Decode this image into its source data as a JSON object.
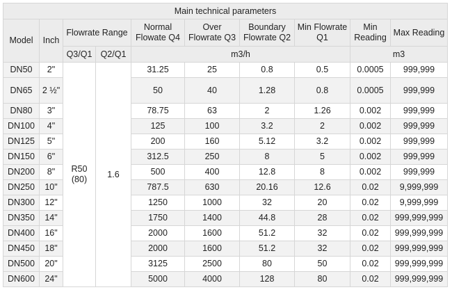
{
  "title": "Main technical parameters",
  "headers": {
    "model": "Model",
    "inch": "Inch",
    "flowrate_range": "Flowrate Range",
    "q4": "Normal Flowate Q4",
    "q3": "Over Flowrate Q3",
    "q2": "Boundary Flowrate Q2",
    "q1": "Min Flowrate Q1",
    "min_reading": "Min Reading",
    "max_reading": "Max Reading",
    "q3q1": "Q3/Q1",
    "q2q1": "Q2/Q1",
    "unit_flow": "m3/h",
    "unit_volume": "m3"
  },
  "q3q1_value": "R50 (80)",
  "q2q1_value": "1.6",
  "rows": [
    {
      "model": "DN50",
      "inch": "2\"",
      "q4": "31.25",
      "q3": "25",
      "q2": "0.8",
      "q1": "0.5",
      "min": "0.0005",
      "max": "999,999"
    },
    {
      "model": "DN65",
      "inch": "2 ½\"",
      "q4": "50",
      "q3": "40",
      "q2": "1.28",
      "q1": "0.8",
      "min": "0.0005",
      "max": "999,999"
    },
    {
      "model": "DN80",
      "inch": "3\"",
      "q4": "78.75",
      "q3": "63",
      "q2": "2",
      "q1": "1.26",
      "min": "0.002",
      "max": "999,999"
    },
    {
      "model": "DN100",
      "inch": "4\"",
      "q4": "125",
      "q3": "100",
      "q2": "3.2",
      "q1": "2",
      "min": "0.002",
      "max": "999,999"
    },
    {
      "model": "DN125",
      "inch": "5\"",
      "q4": "200",
      "q3": "160",
      "q2": "5.12",
      "q1": "3.2",
      "min": "0.002",
      "max": "999,999"
    },
    {
      "model": "DN150",
      "inch": "6\"",
      "q4": "312.5",
      "q3": "250",
      "q2": "8",
      "q1": "5",
      "min": "0.002",
      "max": "999,999"
    },
    {
      "model": "DN200",
      "inch": "8\"",
      "q4": "500",
      "q3": "400",
      "q2": "12.8",
      "q1": "8",
      "min": "0.002",
      "max": "999,999"
    },
    {
      "model": "DN250",
      "inch": "10\"",
      "q4": "787.5",
      "q3": "630",
      "q2": "20.16",
      "q1": "12.6",
      "min": "0.02",
      "max": "9,999,999"
    },
    {
      "model": "DN300",
      "inch": "12\"",
      "q4": "1250",
      "q3": "1000",
      "q2": "32",
      "q1": "20",
      "min": "0.02",
      "max": "9,999,999"
    },
    {
      "model": "DN350",
      "inch": "14\"",
      "q4": "1750",
      "q3": "1400",
      "q2": "44.8",
      "q1": "28",
      "min": "0.02",
      "max": "999,999,999"
    },
    {
      "model": "DN400",
      "inch": "16\"",
      "q4": "2000",
      "q3": "1600",
      "q2": "51.2",
      "q1": "32",
      "min": "0.02",
      "max": "999,999,999"
    },
    {
      "model": "DN450",
      "inch": "18\"",
      "q4": "2000",
      "q3": "1600",
      "q2": "51.2",
      "q1": "32",
      "min": "0.02",
      "max": "999,999,999"
    },
    {
      "model": "DN500",
      "inch": "20\"",
      "q4": "3125",
      "q3": "2500",
      "q2": "80",
      "q1": "50",
      "min": "0.02",
      "max": "999,999,999"
    },
    {
      "model": "DN600",
      "inch": "24\"",
      "q4": "5000",
      "q3": "4000",
      "q2": "128",
      "q1": "80",
      "min": "0.02",
      "max": "999,999,999"
    }
  ]
}
